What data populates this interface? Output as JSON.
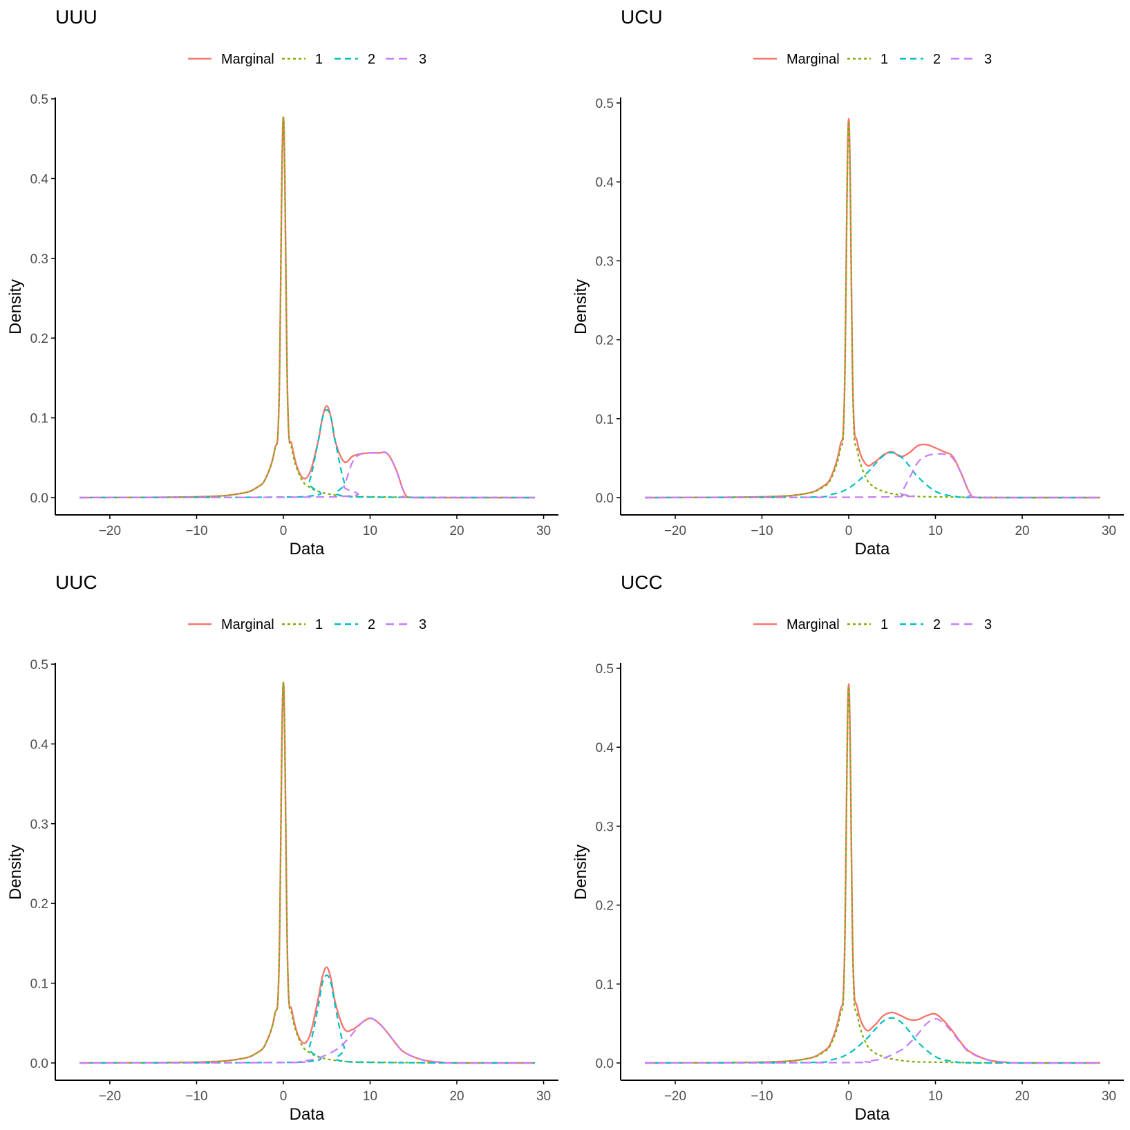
{
  "colors": {
    "marginal": "#F8766D",
    "comp1": "#7CAE00",
    "comp2": "#00BFC4",
    "comp3": "#C77CFF",
    "axis": "#000000",
    "tick_text": "#4d4d4d"
  },
  "chart_data": [
    {
      "type": "line",
      "title": "UUU",
      "xlabel": "Data",
      "ylabel": "Density",
      "xlim": [
        -23.5,
        29
      ],
      "ylim": [
        0,
        0.5
      ],
      "xticks": [
        -20,
        -10,
        0,
        10,
        20,
        30
      ],
      "xtick_labels": [
        "−20",
        "−10",
        "0",
        "10",
        "20",
        "30"
      ],
      "yticks": [
        0,
        0.1,
        0.2,
        0.3,
        0.4,
        0.5
      ],
      "ytick_labels": [
        "0.0",
        "0.1",
        "0.2",
        "0.3",
        "0.4",
        "0.5"
      ],
      "legend": [
        "Marginal",
        "1",
        "2",
        "3"
      ],
      "legend_position": "top",
      "series": [
        {
          "name": "Marginal",
          "x": [
            -23.5,
            -10,
            -5,
            -3,
            -2,
            -1,
            -0.5,
            0,
            0.5,
            1,
            2,
            3,
            4,
            4.5,
            5,
            5.5,
            6,
            7,
            8,
            9,
            10,
            11,
            12,
            13,
            14,
            15,
            20,
            29
          ],
          "y": [
            0,
            0.001,
            0.005,
            0.013,
            0.025,
            0.06,
            0.12,
            0.477,
            0.12,
            0.065,
            0.028,
            0.03,
            0.07,
            0.1,
            0.115,
            0.1,
            0.07,
            0.045,
            0.052,
            0.055,
            0.056,
            0.056,
            0.055,
            0.035,
            0.005,
            0,
            0,
            0
          ]
        },
        {
          "name": "1",
          "x": [
            -23.5,
            -10,
            -5,
            -3,
            -2,
            -1,
            -0.5,
            0,
            0.5,
            1,
            2,
            3,
            4,
            5,
            7,
            10,
            20,
            29
          ],
          "y": [
            0,
            0.001,
            0.005,
            0.013,
            0.025,
            0.06,
            0.12,
            0.477,
            0.12,
            0.06,
            0.025,
            0.013,
            0.008,
            0.005,
            0.002,
            0.001,
            0,
            0
          ]
        },
        {
          "name": "2",
          "x": [
            -23.5,
            2,
            3,
            4,
            4.5,
            5,
            5.5,
            6,
            7,
            8,
            29
          ],
          "y": [
            0,
            0.001,
            0.02,
            0.07,
            0.1,
            0.11,
            0.1,
            0.07,
            0.02,
            0.001,
            0
          ]
        },
        {
          "name": "3",
          "x": [
            -23.5,
            6,
            7,
            8,
            9,
            10,
            11,
            12,
            13,
            14,
            15,
            29
          ],
          "y": [
            0,
            0.001,
            0.015,
            0.045,
            0.055,
            0.056,
            0.056,
            0.055,
            0.035,
            0.005,
            0,
            0
          ]
        }
      ]
    },
    {
      "type": "line",
      "title": "UCU",
      "xlabel": "Data",
      "ylabel": "Density",
      "xlim": [
        -23.5,
        29
      ],
      "ylim": [
        0,
        0.5
      ],
      "xticks": [
        -20,
        -10,
        0,
        10,
        20,
        30
      ],
      "xtick_labels": [
        "−20",
        "−10",
        "0",
        "10",
        "20",
        "30"
      ],
      "yticks": [
        0,
        0.1,
        0.2,
        0.3,
        0.4,
        0.5
      ],
      "ytick_labels": [
        "0.0",
        "0.1",
        "0.2",
        "0.3",
        "0.4",
        "0.5"
      ],
      "legend": [
        "Marginal",
        "1",
        "2",
        "3"
      ],
      "legend_position": "top",
      "series": [
        {
          "name": "Marginal",
          "x": [
            -23.5,
            -10,
            -5,
            -3,
            -2,
            -1,
            -0.5,
            0,
            0.5,
            1,
            2,
            3,
            4,
            5,
            6,
            7,
            8,
            9,
            10,
            11,
            12,
            13,
            14,
            15,
            20,
            29
          ],
          "y": [
            0,
            0.001,
            0.005,
            0.014,
            0.027,
            0.065,
            0.125,
            0.48,
            0.13,
            0.07,
            0.042,
            0.045,
            0.054,
            0.058,
            0.052,
            0.057,
            0.066,
            0.067,
            0.063,
            0.058,
            0.052,
            0.03,
            0.005,
            0,
            0,
            0
          ]
        },
        {
          "name": "1",
          "x": [
            -23.5,
            -10,
            -5,
            -3,
            -2,
            -1,
            -0.5,
            0,
            0.5,
            1,
            2,
            3,
            4,
            5,
            7,
            10,
            20,
            29
          ],
          "y": [
            0,
            0.001,
            0.005,
            0.013,
            0.025,
            0.06,
            0.12,
            0.477,
            0.12,
            0.06,
            0.025,
            0.013,
            0.008,
            0.005,
            0.002,
            0.001,
            0,
            0
          ]
        },
        {
          "name": "2",
          "x": [
            -23.5,
            -5,
            -2,
            0,
            2,
            3,
            4,
            5,
            6,
            7,
            8,
            10,
            12,
            15,
            29
          ],
          "y": [
            0,
            0.0005,
            0.004,
            0.012,
            0.03,
            0.042,
            0.053,
            0.057,
            0.052,
            0.04,
            0.026,
            0.008,
            0.002,
            0,
            0
          ]
        },
        {
          "name": "3",
          "x": [
            -23.5,
            5,
            6,
            7,
            8,
            9,
            10,
            11,
            12,
            13,
            14,
            15,
            29
          ],
          "y": [
            0,
            0.001,
            0.006,
            0.025,
            0.045,
            0.053,
            0.055,
            0.055,
            0.05,
            0.03,
            0.005,
            0,
            0
          ]
        }
      ]
    },
    {
      "type": "line",
      "title": "UUC",
      "xlabel": "Data",
      "ylabel": "Density",
      "xlim": [
        -23.5,
        29
      ],
      "ylim": [
        0,
        0.5
      ],
      "xticks": [
        -20,
        -10,
        0,
        10,
        20,
        30
      ],
      "xtick_labels": [
        "−20",
        "−10",
        "0",
        "10",
        "20",
        "30"
      ],
      "yticks": [
        0,
        0.1,
        0.2,
        0.3,
        0.4,
        0.5
      ],
      "ytick_labels": [
        "0.0",
        "0.1",
        "0.2",
        "0.3",
        "0.4",
        "0.5"
      ],
      "legend": [
        "Marginal",
        "1",
        "2",
        "3"
      ],
      "legend_position": "top",
      "series": [
        {
          "name": "Marginal",
          "x": [
            -23.5,
            -10,
            -5,
            -3,
            -2,
            -1,
            -0.5,
            0,
            0.5,
            1,
            2,
            3,
            4,
            4.5,
            5,
            5.5,
            6,
            7,
            8,
            9,
            10,
            11,
            12,
            13,
            14,
            16,
            18,
            20,
            29
          ],
          "y": [
            0,
            0.001,
            0.005,
            0.013,
            0.025,
            0.06,
            0.12,
            0.477,
            0.12,
            0.065,
            0.028,
            0.033,
            0.08,
            0.108,
            0.12,
            0.105,
            0.075,
            0.043,
            0.042,
            0.05,
            0.056,
            0.05,
            0.038,
            0.024,
            0.013,
            0.004,
            0.001,
            0,
            0
          ]
        },
        {
          "name": "1",
          "x": [
            -23.5,
            -10,
            -5,
            -3,
            -2,
            -1,
            -0.5,
            0,
            0.5,
            1,
            2,
            3,
            4,
            5,
            7,
            10,
            20,
            29
          ],
          "y": [
            0,
            0.001,
            0.005,
            0.013,
            0.025,
            0.06,
            0.12,
            0.477,
            0.12,
            0.06,
            0.025,
            0.013,
            0.008,
            0.005,
            0.002,
            0.001,
            0,
            0
          ]
        },
        {
          "name": "2",
          "x": [
            -23.5,
            2,
            3,
            4,
            4.5,
            5,
            5.5,
            6,
            7,
            8,
            29
          ],
          "y": [
            0,
            0.001,
            0.02,
            0.07,
            0.1,
            0.11,
            0.1,
            0.07,
            0.02,
            0.001,
            0
          ]
        },
        {
          "name": "3",
          "x": [
            -23.5,
            0,
            2,
            4,
            6,
            7,
            8,
            9,
            10,
            11,
            12,
            13,
            14,
            16,
            18,
            20,
            29
          ],
          "y": [
            0,
            0.0005,
            0.002,
            0.006,
            0.016,
            0.025,
            0.037,
            0.05,
            0.056,
            0.05,
            0.038,
            0.024,
            0.013,
            0.004,
            0.001,
            0,
            0
          ]
        }
      ]
    },
    {
      "type": "line",
      "title": "UCC",
      "xlabel": "Data",
      "ylabel": "Density",
      "xlim": [
        -23.5,
        29
      ],
      "ylim": [
        0,
        0.5
      ],
      "xticks": [
        -20,
        -10,
        0,
        10,
        20,
        30
      ],
      "xtick_labels": [
        "−20",
        "−10",
        "0",
        "10",
        "20",
        "30"
      ],
      "yticks": [
        0,
        0.1,
        0.2,
        0.3,
        0.4,
        0.5
      ],
      "ytick_labels": [
        "0.0",
        "0.1",
        "0.2",
        "0.3",
        "0.4",
        "0.5"
      ],
      "legend": [
        "Marginal",
        "1",
        "2",
        "3"
      ],
      "legend_position": "top",
      "series": [
        {
          "name": "Marginal",
          "x": [
            -23.5,
            -10,
            -5,
            -3,
            -2,
            -1,
            -0.5,
            0,
            0.5,
            1,
            2,
            3,
            4,
            5,
            6,
            7,
            8,
            9,
            10,
            11,
            12,
            13,
            14,
            16,
            18,
            20,
            29
          ],
          "y": [
            0,
            0.001,
            0.005,
            0.014,
            0.027,
            0.065,
            0.125,
            0.48,
            0.13,
            0.07,
            0.042,
            0.048,
            0.06,
            0.064,
            0.06,
            0.055,
            0.055,
            0.06,
            0.062,
            0.053,
            0.04,
            0.025,
            0.014,
            0.004,
            0.001,
            0,
            0
          ]
        },
        {
          "name": "1",
          "x": [
            -23.5,
            -10,
            -5,
            -3,
            -2,
            -1,
            -0.5,
            0,
            0.5,
            1,
            2,
            3,
            4,
            5,
            7,
            10,
            20,
            29
          ],
          "y": [
            0,
            0.001,
            0.005,
            0.013,
            0.025,
            0.06,
            0.12,
            0.477,
            0.12,
            0.06,
            0.025,
            0.013,
            0.008,
            0.005,
            0.002,
            0.001,
            0,
            0
          ]
        },
        {
          "name": "2",
          "x": [
            -23.5,
            -5,
            -2,
            0,
            2,
            3,
            4,
            5,
            6,
            7,
            8,
            10,
            12,
            15,
            29
          ],
          "y": [
            0,
            0.0005,
            0.004,
            0.012,
            0.03,
            0.042,
            0.053,
            0.057,
            0.052,
            0.04,
            0.026,
            0.008,
            0.002,
            0,
            0
          ]
        },
        {
          "name": "3",
          "x": [
            -23.5,
            0,
            2,
            4,
            6,
            7,
            8,
            9,
            10,
            11,
            12,
            13,
            14,
            16,
            18,
            20,
            29
          ],
          "y": [
            0,
            0.0005,
            0.002,
            0.006,
            0.016,
            0.025,
            0.037,
            0.05,
            0.056,
            0.05,
            0.038,
            0.024,
            0.013,
            0.004,
            0.001,
            0,
            0
          ]
        }
      ]
    }
  ]
}
